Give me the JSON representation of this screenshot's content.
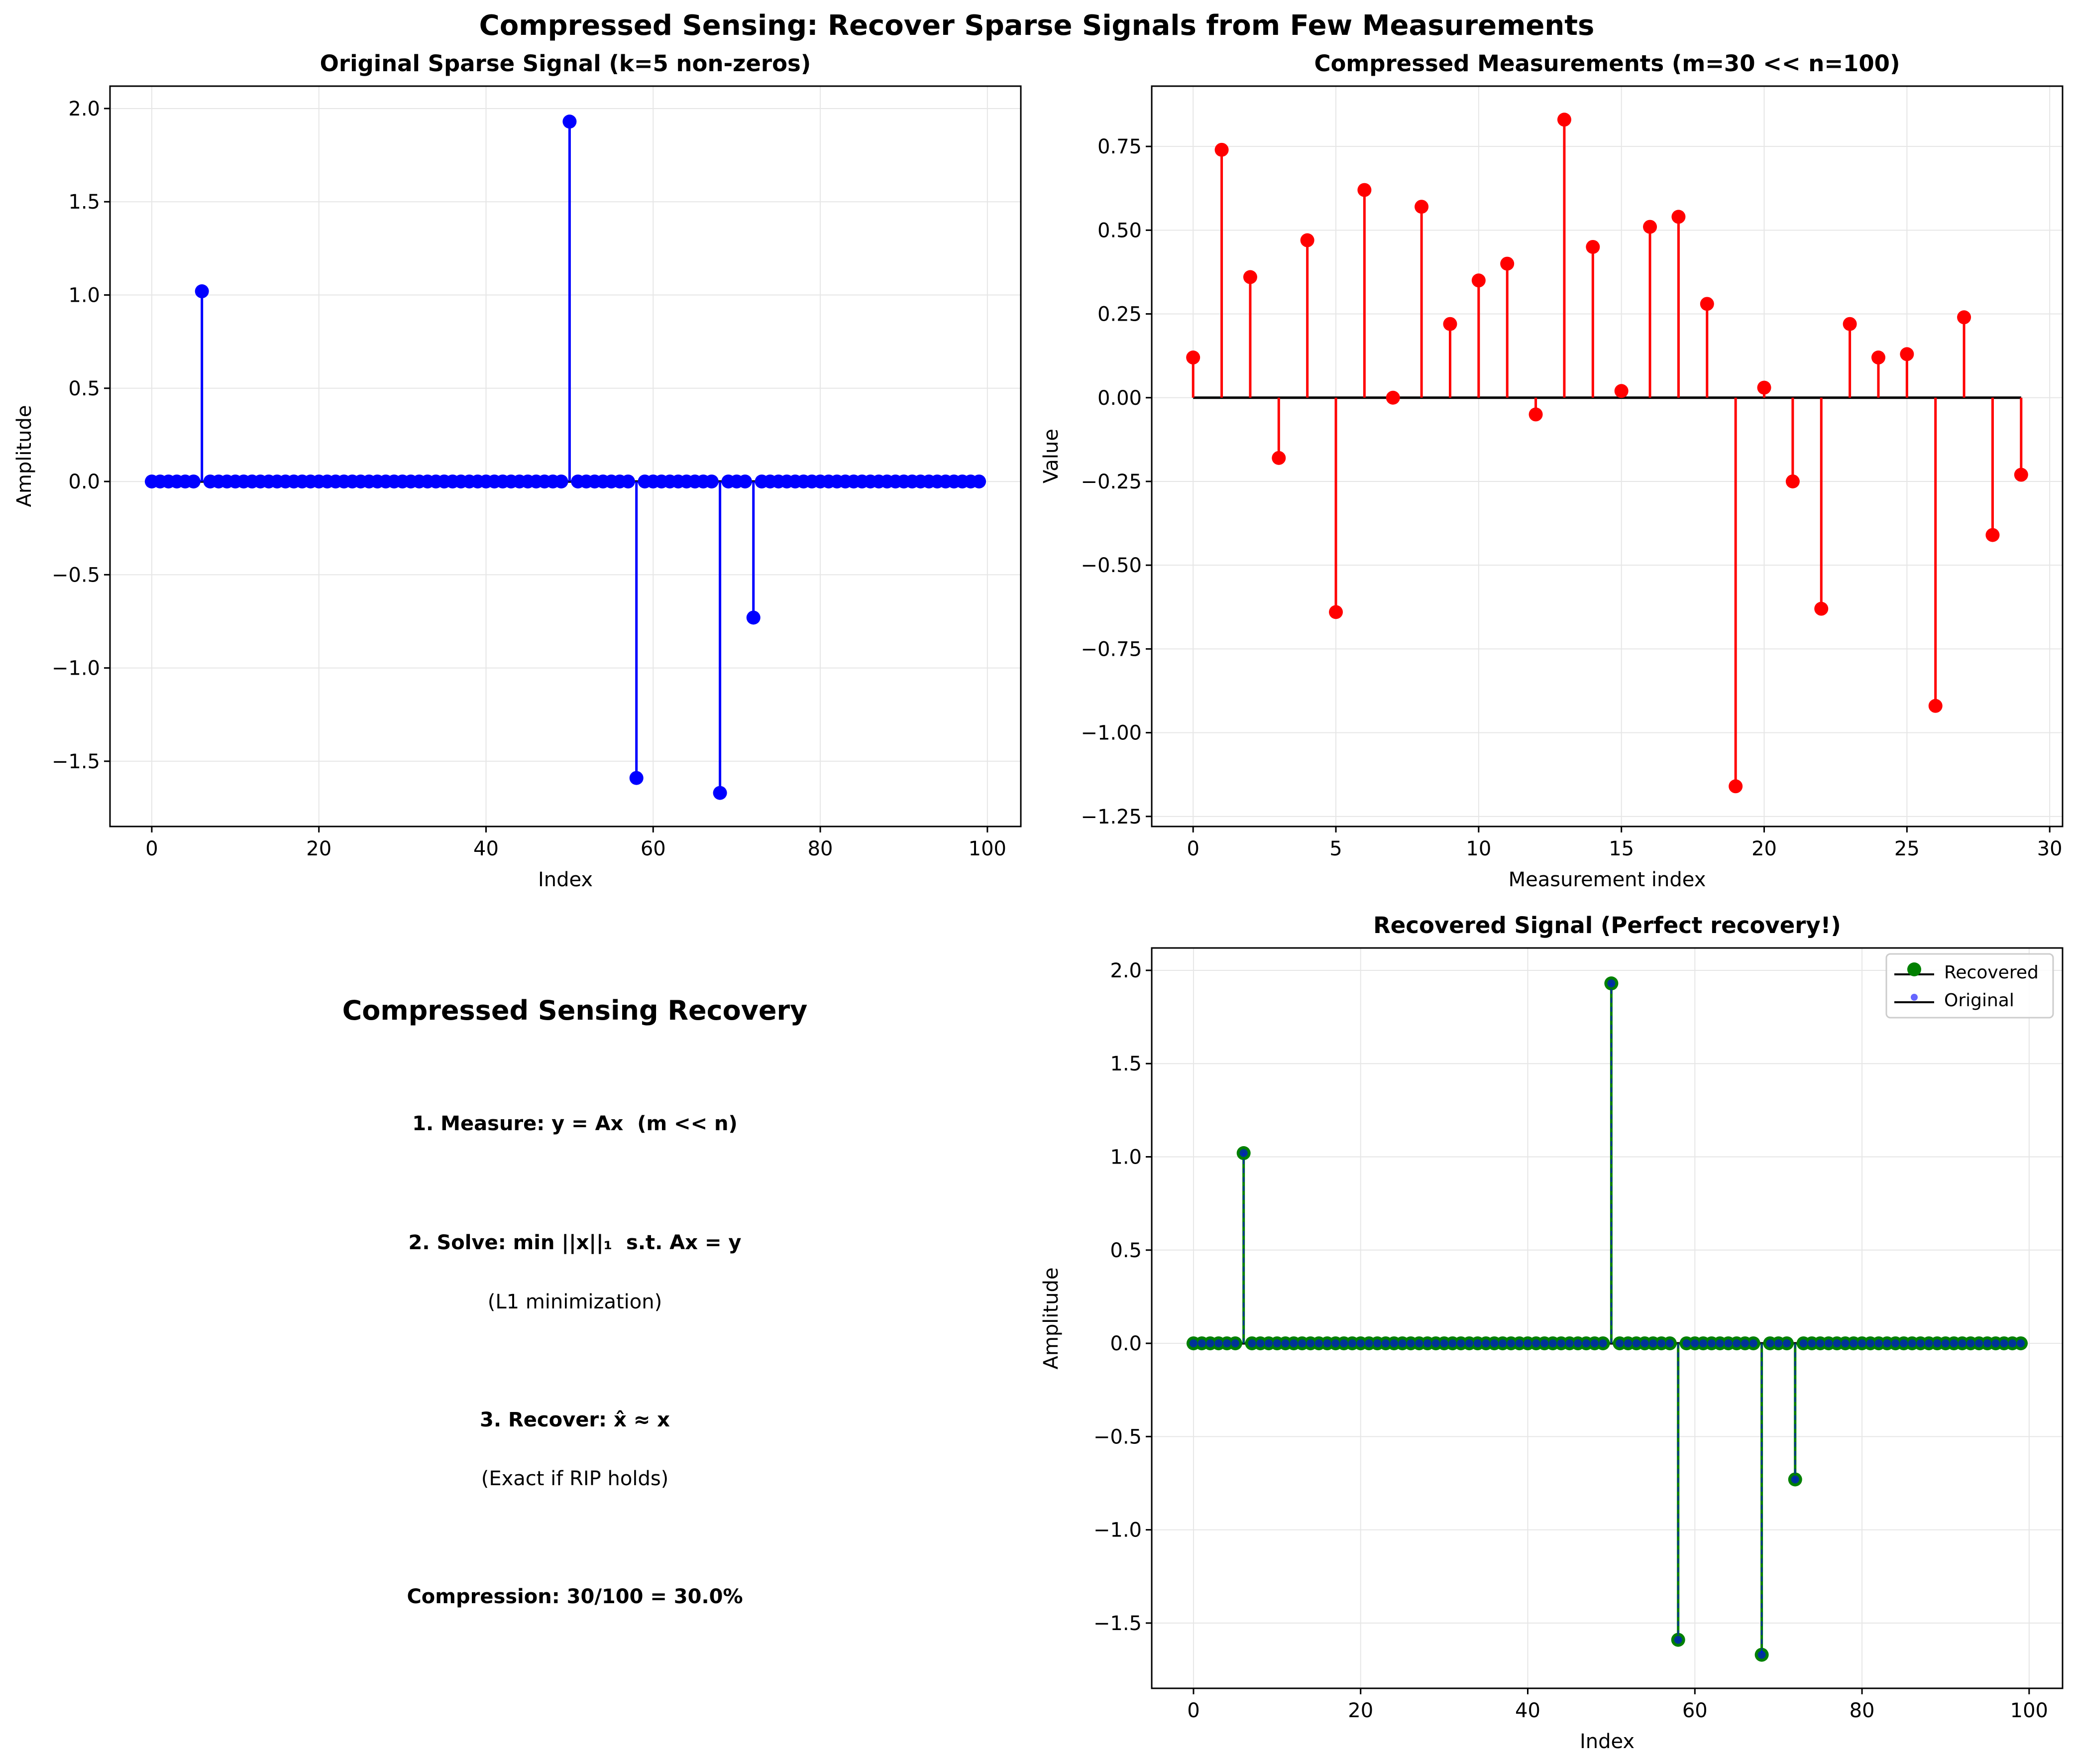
{
  "suptitle": "Compressed Sensing: Recover Sparse Signals from Few Measurements",
  "colors": {
    "original": "#0000ff",
    "measurements": "#ff0000",
    "recovered": "#008000",
    "baseline": "#000000",
    "grid": "#e6e6e6"
  },
  "chart_data": [
    {
      "id": "original",
      "type": "stem",
      "title": "Original Sparse Signal (k=5 non-zeros)",
      "xlabel": "Index",
      "ylabel": "Amplitude",
      "xlim": [
        -5,
        104
      ],
      "ylim": [
        -1.85,
        2.12
      ],
      "xticks": [
        0,
        20,
        40,
        60,
        80,
        100
      ],
      "yticks": [
        -1.5,
        -1.0,
        -0.5,
        0.0,
        0.5,
        1.0,
        1.5,
        2.0
      ],
      "ytick_labels": [
        "−1.5",
        "−1.0",
        "−0.5",
        "0.0",
        "0.5",
        "1.0",
        "1.5",
        "2.0"
      ],
      "n": 100,
      "nonzeros": [
        {
          "index": 6,
          "value": 1.02
        },
        {
          "index": 50,
          "value": 1.93
        },
        {
          "index": 58,
          "value": -1.59
        },
        {
          "index": 68,
          "value": -1.67
        },
        {
          "index": 72,
          "value": -0.73
        }
      ],
      "grid": true
    },
    {
      "id": "measurements",
      "type": "stem",
      "title": "Compressed Measurements (m=30 << n=100)",
      "xlabel": "Measurement index",
      "ylabel": "Value",
      "xlim": [
        -1.45,
        30.45
      ],
      "ylim": [
        -1.28,
        0.93
      ],
      "xticks": [
        0,
        5,
        10,
        15,
        20,
        25,
        30
      ],
      "yticks": [
        -1.25,
        -1.0,
        -0.75,
        -0.5,
        -0.25,
        0.0,
        0.25,
        0.5,
        0.75
      ],
      "ytick_labels": [
        "−1.25",
        "−1.00",
        "−0.75",
        "−0.50",
        "−0.25",
        "0.00",
        "0.25",
        "0.50",
        "0.75"
      ],
      "values": [
        0.12,
        0.74,
        0.36,
        -0.18,
        0.47,
        -0.64,
        0.62,
        0.0,
        0.57,
        0.22,
        0.35,
        0.4,
        -0.05,
        0.83,
        0.45,
        0.02,
        0.51,
        0.54,
        0.28,
        -1.16,
        0.03,
        -0.25,
        -0.63,
        0.22,
        0.12,
        0.13,
        -0.92,
        0.24,
        -0.41,
        -0.23
      ],
      "grid": true
    },
    {
      "id": "recovered",
      "type": "stem",
      "title": "Recovered Signal (Perfect recovery!)",
      "xlabel": "Index",
      "ylabel": "Amplitude",
      "xlim": [
        -5,
        104
      ],
      "ylim": [
        -1.85,
        2.12
      ],
      "xticks": [
        0,
        20,
        40,
        60,
        80,
        100
      ],
      "yticks": [
        -1.5,
        -1.0,
        -0.5,
        0.0,
        0.5,
        1.0,
        1.5,
        2.0
      ],
      "ytick_labels": [
        "−1.5",
        "−1.0",
        "−0.5",
        "0.0",
        "0.5",
        "1.0",
        "1.5",
        "2.0"
      ],
      "n": 100,
      "series": [
        {
          "name": "Recovered",
          "nonzeros": [
            {
              "index": 6,
              "value": 1.02
            },
            {
              "index": 50,
              "value": 1.93
            },
            {
              "index": 58,
              "value": -1.59
            },
            {
              "index": 68,
              "value": -1.67
            },
            {
              "index": 72,
              "value": -0.73
            }
          ]
        },
        {
          "name": "Original",
          "nonzeros": [
            {
              "index": 6,
              "value": 1.02
            },
            {
              "index": 50,
              "value": 1.93
            },
            {
              "index": 58,
              "value": -1.59
            },
            {
              "index": 68,
              "value": -1.67
            },
            {
              "index": 72,
              "value": -0.73
            }
          ]
        }
      ],
      "legend": "top-right",
      "grid": true
    }
  ],
  "text_panel": {
    "title": "Compressed Sensing Recovery",
    "step1": "1. Measure: y = Ax  (m << n)",
    "step2": "2. Solve: min ||x||₁  s.t. Ax = y",
    "step2_note": "(L1 minimization)",
    "step3": "3. Recover: x̂ ≈ x",
    "step3_note": "(Exact if RIP holds)",
    "compression": "Compression: 30/100 = 30.0%"
  }
}
